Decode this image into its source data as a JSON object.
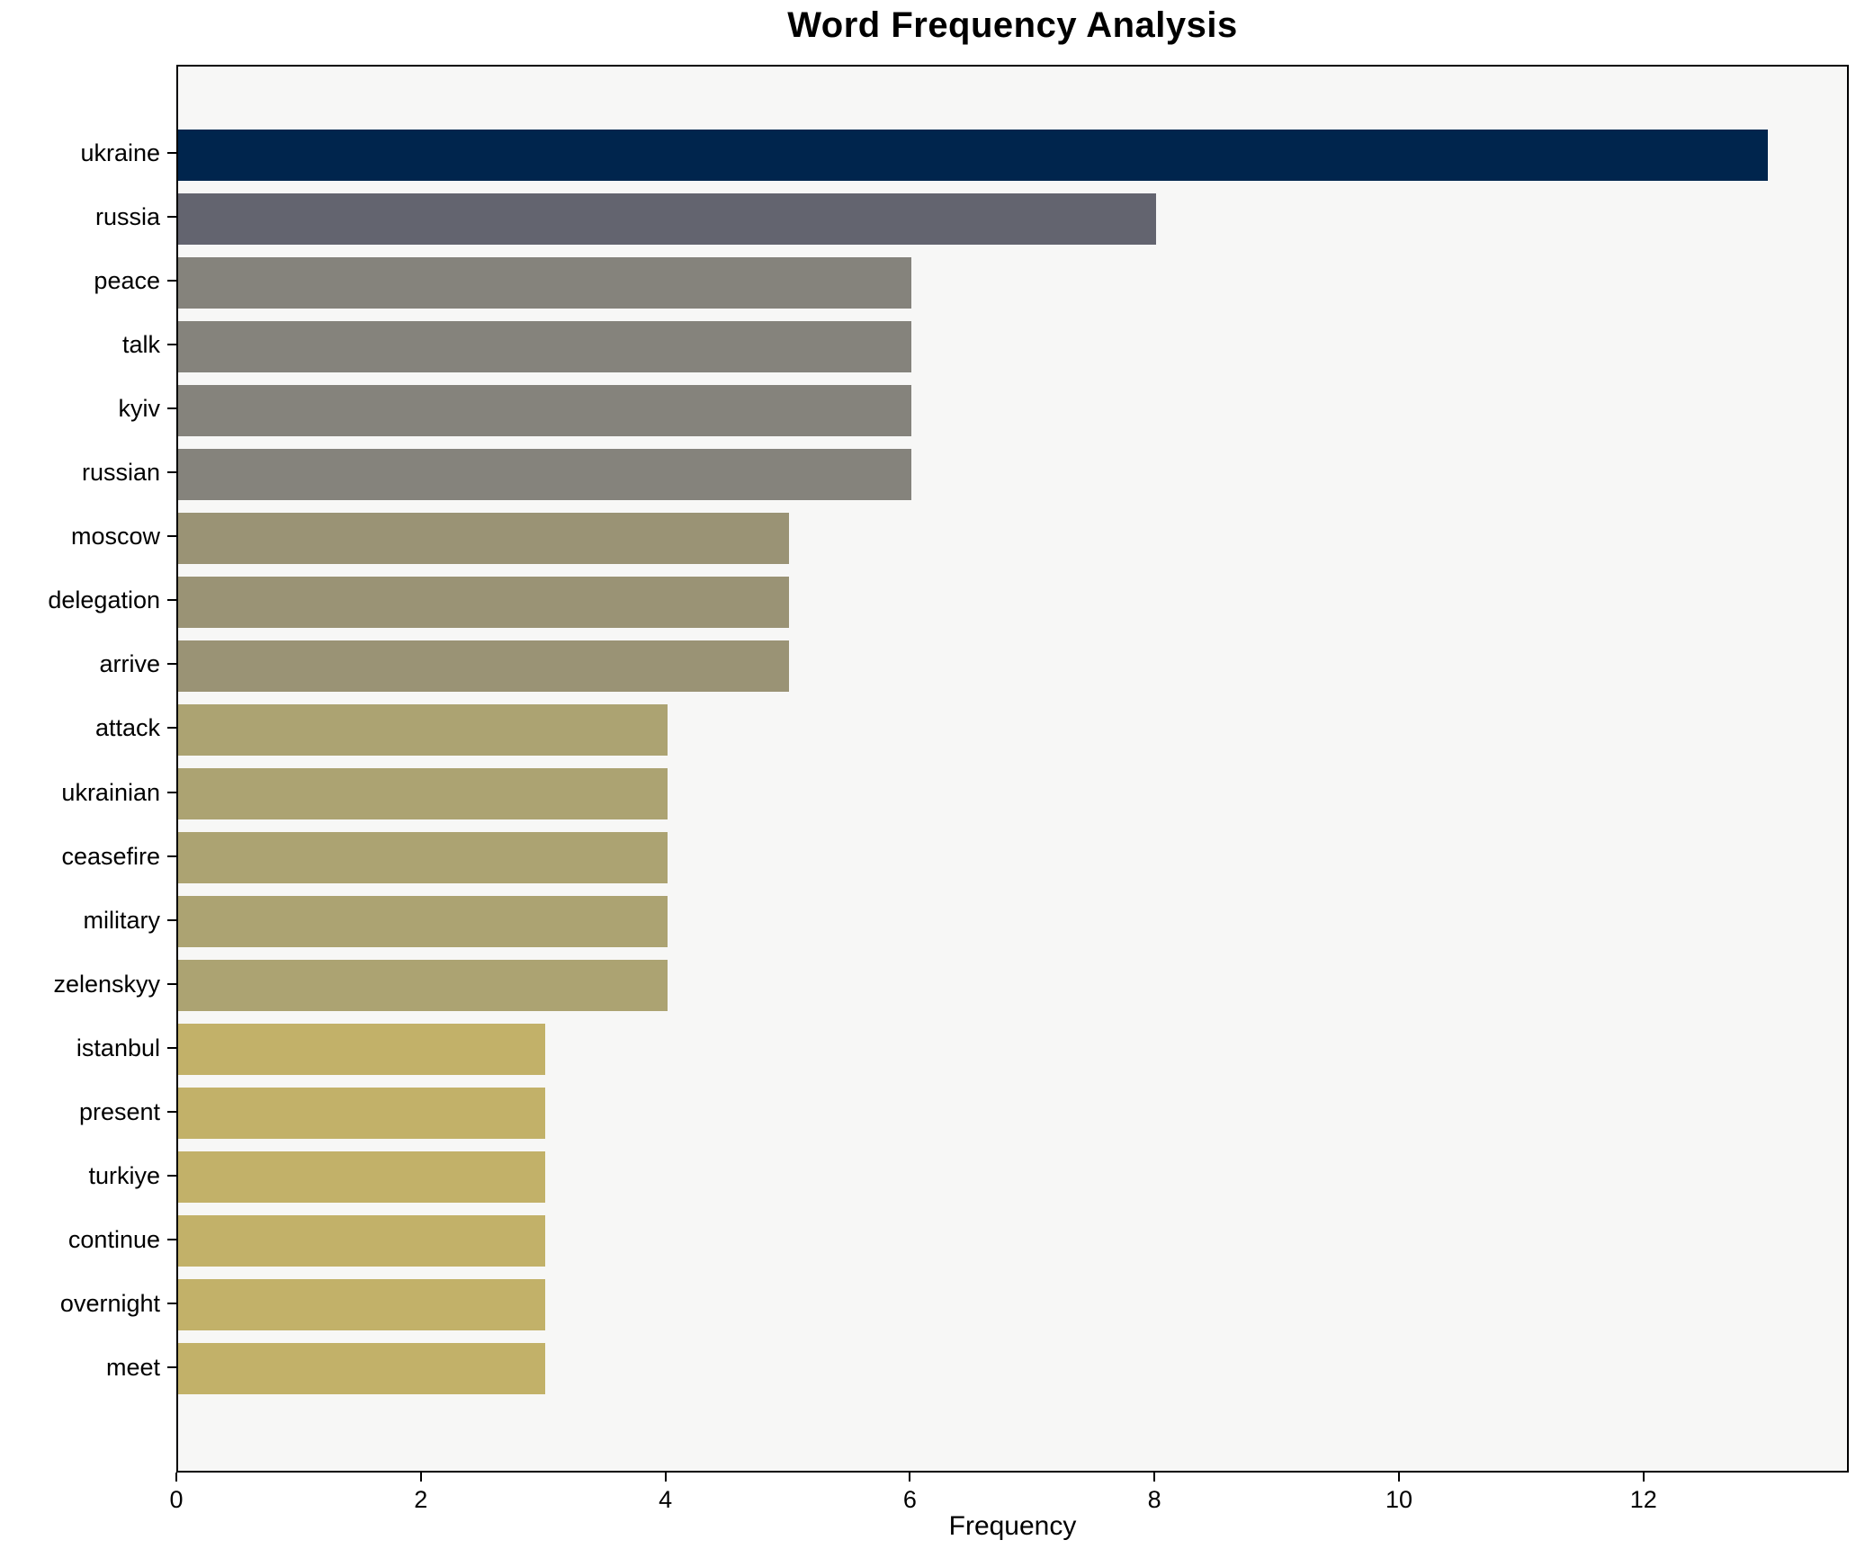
{
  "title": "Word Frequency Analysis",
  "chart_data": {
    "type": "bar",
    "orientation": "horizontal",
    "title": "Word Frequency Analysis",
    "xlabel": "Frequency",
    "ylabel": "",
    "categories": [
      "ukraine",
      "russia",
      "peace",
      "talk",
      "kyiv",
      "russian",
      "moscow",
      "delegation",
      "arrive",
      "attack",
      "ukrainian",
      "ceasefire",
      "military",
      "zelenskyy",
      "istanbul",
      "present",
      "turkiye",
      "continue",
      "overnight",
      "meet"
    ],
    "values": [
      13,
      8,
      6,
      6,
      6,
      6,
      5,
      5,
      5,
      4,
      4,
      4,
      4,
      4,
      3,
      3,
      3,
      3,
      3,
      3
    ],
    "bar_colors": [
      "#00254d",
      "#63646f",
      "#85837c",
      "#85837c",
      "#85837c",
      "#85837c",
      "#9a9375",
      "#9a9375",
      "#9a9375",
      "#aca372",
      "#aca372",
      "#aca372",
      "#aca372",
      "#aca372",
      "#c2b169",
      "#c2b169",
      "#c2b169",
      "#c2b169",
      "#c2b169",
      "#c2b169"
    ],
    "xlim": [
      0,
      13.65
    ],
    "xticks": [
      0,
      2,
      4,
      6,
      8,
      10,
      12
    ],
    "grid": false,
    "legend_position": "none",
    "plot_background": "#f7f7f6",
    "figure_background": "#ffffff",
    "spine_color": "#000000"
  }
}
